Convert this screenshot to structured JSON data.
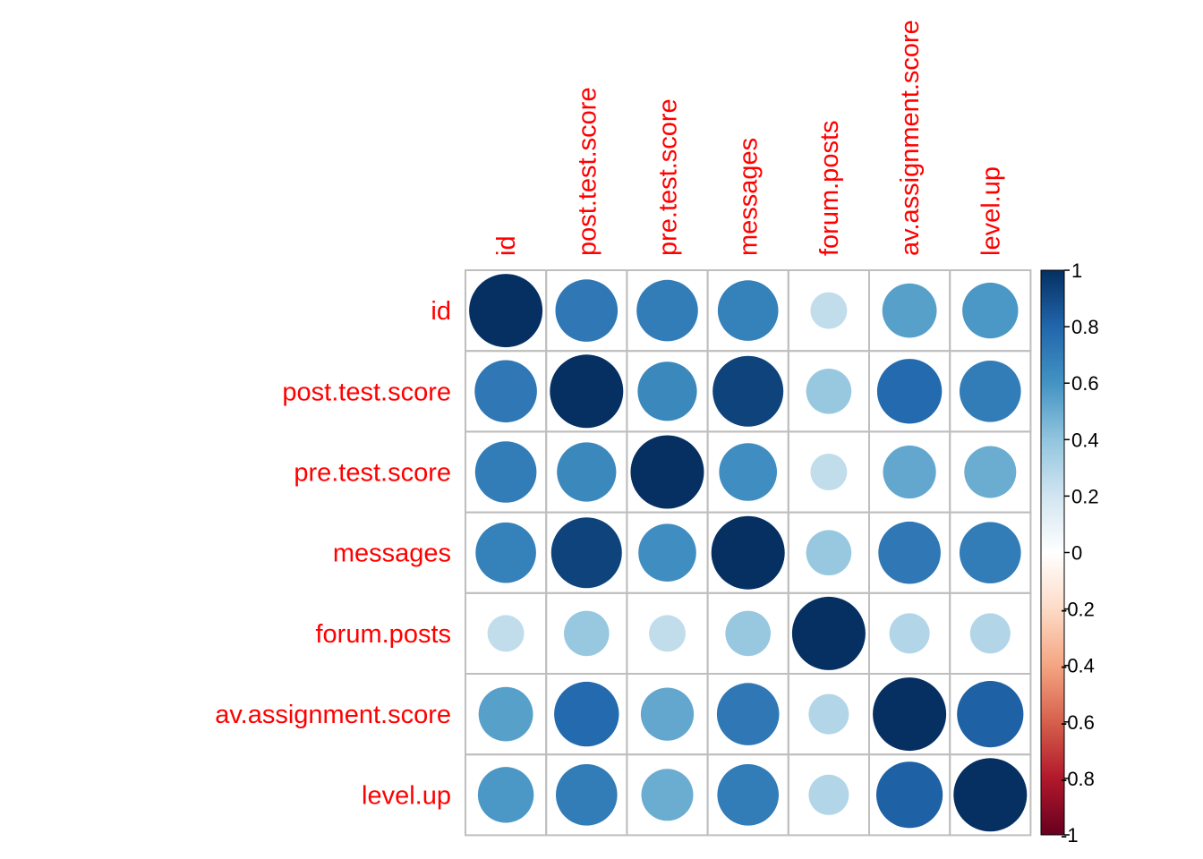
{
  "chart_data": {
    "type": "heatmap",
    "variables": [
      "id",
      "post.test.score",
      "pre.test.score",
      "messages",
      "forum.posts",
      "av.assignment.score",
      "level.up"
    ],
    "matrix": [
      [
        1.0,
        0.72,
        0.7,
        0.68,
        0.25,
        0.55,
        0.58
      ],
      [
        0.72,
        1.0,
        0.65,
        0.93,
        0.38,
        0.78,
        0.7
      ],
      [
        0.7,
        0.65,
        1.0,
        0.62,
        0.25,
        0.52,
        0.5
      ],
      [
        0.68,
        0.93,
        0.62,
        1.0,
        0.38,
        0.72,
        0.7
      ],
      [
        0.25,
        0.38,
        0.25,
        0.38,
        1.0,
        0.3,
        0.3
      ],
      [
        0.55,
        0.78,
        0.52,
        0.72,
        0.3,
        1.0,
        0.82
      ],
      [
        0.58,
        0.7,
        0.5,
        0.7,
        0.3,
        0.82,
        1.0
      ]
    ],
    "colorbar": {
      "range": [
        -1,
        1
      ],
      "ticks": [
        "1",
        "0.8",
        "0.6",
        "0.4",
        "0.2",
        "0",
        "-0.2",
        "-0.4",
        "-0.6",
        "-0.8",
        "-1"
      ],
      "tick_values": [
        1,
        0.8,
        0.6,
        0.4,
        0.2,
        0,
        -0.2,
        -0.4,
        -0.6,
        -0.8,
        -1
      ],
      "palette": [
        "#67001F",
        "#B2182B",
        "#D6604D",
        "#F4A582",
        "#FDDBC7",
        "#FFFFFF",
        "#D1E5F0",
        "#92C5DE",
        "#4393C3",
        "#2166AC",
        "#053061"
      ]
    },
    "label_color": "#ff0000",
    "grid_color": "#bebebe",
    "title": "",
    "legend_position": "right"
  }
}
